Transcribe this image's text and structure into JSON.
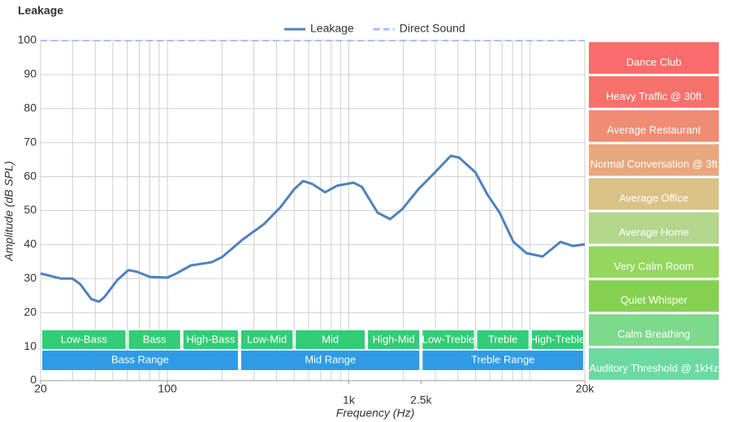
{
  "chart_data": {
    "type": "line",
    "title": "Leakage",
    "x_label": "Frequency (Hz)",
    "y_label": "Amplitude (dB SPL)",
    "log_x": true,
    "grid": true,
    "legend": "top",
    "xlim": [
      20,
      20000
    ],
    "ylim": [
      0,
      100
    ],
    "xticks": [
      20,
      100,
      {
        "value": 1000,
        "label": "1k"
      },
      {
        "value": 2500,
        "label": "2.5k"
      },
      {
        "value": 20000,
        "label": "20k"
      }
    ],
    "yticks": [
      0,
      10,
      20,
      30,
      40,
      50,
      60,
      70,
      80,
      90,
      100
    ],
    "series": [
      {
        "name": "Leakage",
        "color": "#4f81bd",
        "dashed": false,
        "x": [
          20,
          26,
          30,
          33,
          38,
          42,
          45,
          53,
          61,
          68,
          80,
          100,
          110,
          135,
          175,
          200,
          260,
          340,
          420,
          500,
          560,
          630,
          740,
          860,
          1060,
          1180,
          1440,
          1690,
          1970,
          2420,
          2970,
          3650,
          4050,
          4980,
          5810,
          6780,
          8080,
          9520,
          11700,
          14700,
          17150,
          20000
        ],
        "values": [
          31.5,
          30,
          30,
          28.4,
          24,
          23.2,
          24.6,
          29.6,
          32.5,
          32,
          30.5,
          30.3,
          31.3,
          33.9,
          34.8,
          36.3,
          41.5,
          46,
          51,
          56.3,
          58.7,
          57.8,
          55.4,
          57.3,
          58.2,
          57,
          49.4,
          47.5,
          50.4,
          56.3,
          61.1,
          66.1,
          65.6,
          61.3,
          54.7,
          49.4,
          40.8,
          37.5,
          36.5,
          40.8,
          39.6,
          40.1
        ]
      },
      {
        "name": "Direct Sound",
        "color": "#aabff5",
        "dashed": true,
        "x": [
          20,
          20000
        ],
        "values": [
          100,
          100
        ]
      }
    ],
    "bands": [
      {
        "label": "Low-Bass",
        "from": 20,
        "to": 60
      },
      {
        "label": "Bass",
        "from": 60,
        "to": 120
      },
      {
        "label": "High-Bass",
        "from": 120,
        "to": 250
      },
      {
        "label": "Low-Mid",
        "from": 250,
        "to": 500
      },
      {
        "label": "Mid",
        "from": 500,
        "to": 1250
      },
      {
        "label": "High-Mid",
        "from": 1250,
        "to": 2500
      },
      {
        "label": "Low-Treble",
        "from": 2500,
        "to": 5000
      },
      {
        "label": "Treble",
        "from": 5000,
        "to": 10000
      },
      {
        "label": "High-Treble",
        "from": 10000,
        "to": 20000
      }
    ],
    "ranges": [
      {
        "label": "Bass Range",
        "from": 20,
        "to": 250
      },
      {
        "label": "Mid Range",
        "from": 250,
        "to": 2500
      },
      {
        "label": "Treble Range",
        "from": 2500,
        "to": 20000
      }
    ],
    "levels": [
      {
        "label": "Dance Club",
        "from": 90,
        "to": 100,
        "color": "#fb6b6b"
      },
      {
        "label": "Heavy Traffic @ 30ft",
        "from": 80,
        "to": 90,
        "color": "#f7716b"
      },
      {
        "label": "Average Restaurant",
        "from": 70,
        "to": 80,
        "color": "#f08c73"
      },
      {
        "label": "Normal Conversation @ 3ft",
        "from": 60,
        "to": 70,
        "color": "#e7a87e"
      },
      {
        "label": "Average Office",
        "from": 50,
        "to": 60,
        "color": "#d9c286"
      },
      {
        "label": "Average Home",
        "from": 40,
        "to": 50,
        "color": "#b2d68c"
      },
      {
        "label": "Very Calm Room",
        "from": 30,
        "to": 40,
        "color": "#95d65e"
      },
      {
        "label": "Quiet Whisper",
        "from": 20,
        "to": 30,
        "color": "#84d152"
      },
      {
        "label": "Calm Breathing",
        "from": 10,
        "to": 20,
        "color": "#7dd98c"
      },
      {
        "label": "Auditory Threshold @ 1kHz",
        "from": 0,
        "to": 10,
        "color": "#6bdaa2"
      }
    ]
  }
}
